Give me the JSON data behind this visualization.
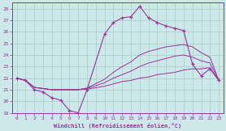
{
  "background_color": "#cce8e8",
  "grid_color": "#aacccc",
  "line_color": "#993399",
  "xlabel": "Windchill (Refroidissement éolien,°C)",
  "xlim": [
    -0.5,
    23.5
  ],
  "ylim": [
    19,
    28.5
  ],
  "yticks": [
    19,
    20,
    21,
    22,
    23,
    24,
    25,
    26,
    27,
    28
  ],
  "xticks": [
    0,
    1,
    2,
    3,
    4,
    5,
    6,
    7,
    8,
    9,
    10,
    11,
    12,
    13,
    14,
    15,
    16,
    17,
    18,
    19,
    20,
    21,
    22,
    23
  ],
  "line_main_x": [
    0,
    1,
    2,
    3,
    4,
    5,
    6,
    7,
    8,
    10,
    11,
    12,
    13,
    14,
    15,
    16,
    17,
    18,
    19,
    20,
    21,
    22,
    23
  ],
  "line_main_y": [
    22.0,
    21.8,
    21.0,
    20.8,
    20.3,
    20.1,
    19.2,
    19.0,
    21.0,
    25.8,
    26.8,
    27.2,
    27.3,
    28.2,
    27.2,
    26.8,
    26.5,
    26.3,
    26.1,
    23.2,
    22.2,
    22.8,
    21.8
  ],
  "line_env1_x": [
    0,
    1,
    2,
    3,
    4,
    5,
    6,
    7,
    8,
    10,
    11,
    12,
    13,
    14,
    15,
    16,
    17,
    18,
    19,
    20,
    21,
    22,
    23
  ],
  "line_env1_y": [
    22.0,
    21.8,
    21.2,
    21.1,
    21.0,
    21.0,
    21.0,
    21.0,
    21.05,
    21.3,
    21.5,
    21.7,
    21.8,
    22.0,
    22.1,
    22.3,
    22.4,
    22.5,
    22.7,
    22.8,
    22.8,
    22.9,
    21.8
  ],
  "line_env2_x": [
    0,
    1,
    2,
    3,
    4,
    5,
    6,
    7,
    8,
    10,
    11,
    12,
    13,
    14,
    15,
    16,
    17,
    18,
    19,
    20,
    21,
    22,
    23
  ],
  "line_env2_y": [
    22.0,
    21.8,
    21.2,
    21.1,
    21.0,
    21.0,
    21.0,
    21.0,
    21.1,
    21.6,
    22.0,
    22.3,
    22.6,
    23.0,
    23.3,
    23.5,
    23.7,
    23.9,
    24.0,
    23.8,
    23.5,
    23.3,
    21.8
  ],
  "line_env3_x": [
    0,
    1,
    2,
    3,
    4,
    5,
    6,
    7,
    8,
    10,
    11,
    12,
    13,
    14,
    15,
    16,
    17,
    18,
    19,
    20,
    21,
    22,
    23
  ],
  "line_env3_y": [
    22.0,
    21.8,
    21.2,
    21.1,
    21.0,
    21.0,
    21.0,
    21.0,
    21.15,
    21.9,
    22.5,
    23.0,
    23.4,
    24.0,
    24.3,
    24.5,
    24.7,
    24.8,
    24.9,
    24.7,
    24.2,
    23.8,
    21.8
  ]
}
